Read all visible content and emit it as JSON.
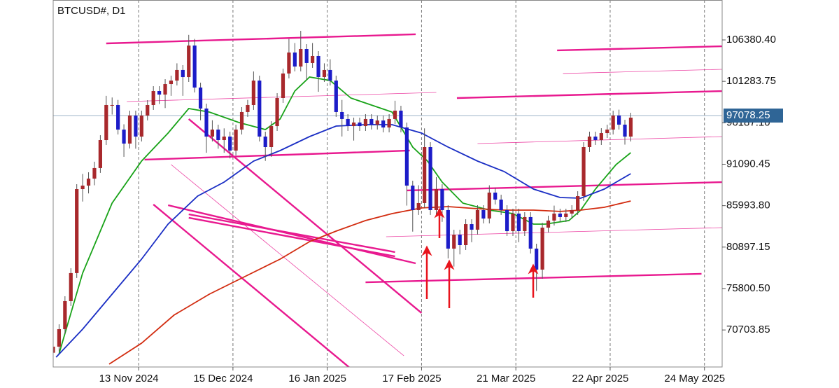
{
  "chart_data": {
    "type": "candlestick",
    "title": "BTCUSD#, D1",
    "up_color": "#a8282c",
    "down_color": "#1c1cc8",
    "wick_color": "#555555",
    "grid": true,
    "xlim": [
      "2024-10-15",
      "2025-05-30"
    ],
    "xticks": [
      {
        "value": "2024-11-13",
        "label": "13 Nov 2024"
      },
      {
        "value": "2024-12-15",
        "label": "15 Dec 2024"
      },
      {
        "value": "2025-01-16",
        "label": "16 Jan 2025"
      },
      {
        "value": "2025-02-17",
        "label": "17 Feb 2025"
      },
      {
        "value": "2025-03-21",
        "label": "21 Mar 2025"
      },
      {
        "value": "2025-04-22",
        "label": "22 Apr 2025"
      },
      {
        "value": "2025-05-24",
        "label": "24 May 2025"
      }
    ],
    "ylim": [
      66150,
      111290
    ],
    "yticks": [
      {
        "value": 106380.4,
        "label": "106380.40"
      },
      {
        "value": 101283.75,
        "label": "101283.75"
      },
      {
        "value": 96187.1,
        "label": "96187.10"
      },
      {
        "value": 91090.45,
        "label": "91090.45"
      },
      {
        "value": 85993.8,
        "label": "85993.80"
      },
      {
        "value": 80897.15,
        "label": "80897.15"
      },
      {
        "value": 75800.5,
        "label": "75800.50"
      },
      {
        "value": 70703.85,
        "label": "70703.85"
      }
    ],
    "last_price": 97078.25,
    "last_price_color": "#2f6596",
    "x": [
      "2024-10-15",
      "2024-10-17",
      "2024-10-19",
      "2024-10-21",
      "2024-10-23",
      "2024-10-25",
      "2024-10-27",
      "2024-10-29",
      "2024-10-31",
      "2024-11-02",
      "2024-11-04",
      "2024-11-06",
      "2024-11-08",
      "2024-11-10",
      "2024-11-12",
      "2024-11-14",
      "2024-11-16",
      "2024-11-18",
      "2024-11-20",
      "2024-11-22",
      "2024-11-24",
      "2024-11-26",
      "2024-11-28",
      "2024-11-30",
      "2024-12-02",
      "2024-12-04",
      "2024-12-06",
      "2024-12-08",
      "2024-12-10",
      "2024-12-12",
      "2024-12-14",
      "2024-12-16",
      "2024-12-18",
      "2024-12-20",
      "2024-12-22",
      "2024-12-24",
      "2024-12-26",
      "2024-12-28",
      "2024-12-30",
      "2025-01-01",
      "2025-01-03",
      "2025-01-05",
      "2025-01-07",
      "2025-01-09",
      "2025-01-11",
      "2025-01-13",
      "2025-01-15",
      "2025-01-17",
      "2025-01-19",
      "2025-01-21",
      "2025-01-23",
      "2025-01-25",
      "2025-01-27",
      "2025-01-29",
      "2025-01-31",
      "2025-02-02",
      "2025-02-04",
      "2025-02-06",
      "2025-02-08",
      "2025-02-10",
      "2025-02-12",
      "2025-02-14",
      "2025-02-16",
      "2025-02-18",
      "2025-02-20",
      "2025-02-22",
      "2025-02-24",
      "2025-02-26",
      "2025-02-28",
      "2025-03-02",
      "2025-03-04",
      "2025-03-06",
      "2025-03-08",
      "2025-03-10",
      "2025-03-12",
      "2025-03-14",
      "2025-03-16",
      "2025-03-18",
      "2025-03-20",
      "2025-03-22",
      "2025-03-24",
      "2025-03-26",
      "2025-03-28",
      "2025-03-30",
      "2025-04-01",
      "2025-04-03",
      "2025-04-05",
      "2025-04-07",
      "2025-04-09",
      "2025-04-11",
      "2025-04-13",
      "2025-04-15",
      "2025-04-17",
      "2025-04-19",
      "2025-04-21",
      "2025-04-23",
      "2025-04-25",
      "2025-04-27",
      "2025-04-29"
    ],
    "ohlc": [
      [
        67900,
        69250,
        67300,
        68650
      ],
      [
        68650,
        71400,
        68050,
        70800
      ],
      [
        70800,
        74850,
        70200,
        74250
      ],
      [
        74250,
        78300,
        73650,
        77700
      ],
      [
        77700,
        88630,
        77100,
        88030
      ],
      [
        88030,
        89900,
        86500,
        88460
      ],
      [
        88460,
        90100,
        87500,
        89320
      ],
      [
        89320,
        91400,
        88500,
        90620
      ],
      [
        90620,
        94660,
        90020,
        94060
      ],
      [
        94060,
        99500,
        93460,
        98370
      ],
      [
        98370,
        99300,
        97200,
        98370
      ],
      [
        98370,
        99000,
        94750,
        95350
      ],
      [
        95350,
        96000,
        92000,
        93630
      ],
      [
        93630,
        97680,
        93030,
        97080
      ],
      [
        97080,
        97680,
        93000,
        94490
      ],
      [
        94490,
        97680,
        93890,
        97080
      ],
      [
        97080,
        98970,
        96480,
        98370
      ],
      [
        98370,
        100690,
        97770,
        100090
      ],
      [
        100090,
        100690,
        98500,
        99660
      ],
      [
        99660,
        101550,
        98000,
        100950
      ],
      [
        100950,
        101980,
        99500,
        101380
      ],
      [
        101380,
        103500,
        100780,
        102680
      ],
      [
        102680,
        103280,
        99500,
        101810
      ],
      [
        101810,
        107000,
        101210,
        105690
      ],
      [
        105690,
        106500,
        99920,
        100520
      ],
      [
        100520,
        101120,
        96500,
        97940
      ],
      [
        97940,
        98540,
        92500,
        94490
      ],
      [
        94490,
        96500,
        93890,
        95350
      ],
      [
        95350,
        95950,
        93000,
        94060
      ],
      [
        94060,
        95500,
        92500,
        94490
      ],
      [
        94490,
        95090,
        91800,
        92770
      ],
      [
        92770,
        95950,
        92170,
        95350
      ],
      [
        95350,
        98110,
        94750,
        97510
      ],
      [
        97510,
        99000,
        96910,
        98370
      ],
      [
        98370,
        102500,
        97770,
        101380
      ],
      [
        101380,
        101980,
        93890,
        94490
      ],
      [
        94490,
        95090,
        91500,
        93200
      ],
      [
        93200,
        96380,
        92000,
        95780
      ],
      [
        95780,
        99830,
        95180,
        99230
      ],
      [
        99230,
        102850,
        98630,
        102250
      ],
      [
        102250,
        106500,
        101650,
        104830
      ],
      [
        104830,
        106000,
        102510,
        103110
      ],
      [
        103110,
        107500,
        102510,
        105260
      ],
      [
        105260,
        105860,
        101500,
        103540
      ],
      [
        103540,
        106000,
        102940,
        104400
      ],
      [
        104400,
        105000,
        100000,
        101810
      ],
      [
        101810,
        103500,
        101210,
        102680
      ],
      [
        102680,
        104000,
        100780,
        101380
      ],
      [
        101380,
        101980,
        96910,
        97510
      ],
      [
        97510,
        99000,
        94500,
        96650
      ],
      [
        96650,
        97250,
        95180,
        95780
      ],
      [
        95780,
        96820,
        94000,
        96220
      ],
      [
        96220,
        96820,
        95180,
        95780
      ],
      [
        95780,
        97250,
        95180,
        96650
      ],
      [
        96650,
        97250,
        95360,
        95960
      ],
      [
        95960,
        97070,
        95360,
        96470
      ],
      [
        96470,
        97070,
        95010,
        95610
      ],
      [
        95610,
        97250,
        95010,
        96650
      ],
      [
        96650,
        98900,
        96050,
        97680
      ],
      [
        97680,
        98280,
        95010,
        95610
      ],
      [
        95610,
        96210,
        86000,
        88460
      ],
      [
        88460,
        89060,
        82800,
        85450
      ],
      [
        85450,
        88500,
        84850,
        86310
      ],
      [
        86310,
        95500,
        85710,
        93200
      ],
      [
        93200,
        93800,
        84850,
        85450
      ],
      [
        85450,
        89500,
        84850,
        88030
      ],
      [
        88030,
        88630,
        84000,
        85450
      ],
      [
        85450,
        86050,
        79500,
        80710
      ],
      [
        80710,
        83030,
        78500,
        82430
      ],
      [
        82430,
        83030,
        80000,
        81140
      ],
      [
        81140,
        84320,
        80540,
        83720
      ],
      [
        83720,
        84320,
        81500,
        83040
      ],
      [
        83040,
        86050,
        82440,
        85450
      ],
      [
        85450,
        86050,
        83810,
        84410
      ],
      [
        84410,
        88500,
        83810,
        87600
      ],
      [
        87600,
        88200,
        86140,
        86740
      ],
      [
        86740,
        87340,
        84850,
        85450
      ],
      [
        85450,
        86050,
        82260,
        82860
      ],
      [
        82860,
        85620,
        82260,
        85020
      ],
      [
        85020,
        85620,
        81500,
        82860
      ],
      [
        82860,
        85190,
        82260,
        84590
      ],
      [
        84590,
        85190,
        80110,
        80710
      ],
      [
        80710,
        81310,
        75500,
        78130
      ],
      [
        78130,
        83890,
        77000,
        83290
      ],
      [
        83290,
        84760,
        82690,
        84160
      ],
      [
        84160,
        86000,
        83560,
        85020
      ],
      [
        85020,
        85620,
        83990,
        84590
      ],
      [
        84590,
        85620,
        83990,
        85020
      ],
      [
        85020,
        86050,
        84420,
        85450
      ],
      [
        85450,
        87770,
        84850,
        87170
      ],
      [
        87170,
        93800,
        86570,
        93200
      ],
      [
        93200,
        95090,
        92600,
        94490
      ],
      [
        94490,
        95090,
        93460,
        94060
      ],
      [
        94060,
        95520,
        93460,
        94920
      ],
      [
        94920,
        95950,
        94320,
        95350
      ],
      [
        95350,
        97680,
        94750,
        97080
      ],
      [
        97080,
        97800,
        95360,
        95960
      ],
      [
        95960,
        96560,
        93500,
        94490
      ],
      [
        94490,
        97420,
        93890,
        96820
      ]
    ],
    "moving_averages": [
      {
        "color": "#19a319",
        "x": [
          "2024-10-17",
          "2024-10-25",
          "2024-11-04",
          "2024-11-14",
          "2024-11-23",
          "2024-11-30",
          "2024-12-07",
          "2024-12-17",
          "2024-12-26",
          "2024-12-31",
          "2025-01-05",
          "2025-01-10",
          "2025-01-17",
          "2025-01-24",
          "2025-01-31",
          "2025-02-07",
          "2025-02-14",
          "2025-02-19",
          "2025-02-24",
          "2025-03-03",
          "2025-03-12",
          "2025-03-20",
          "2025-03-27",
          "2025-03-31",
          "2025-04-08",
          "2025-04-12",
          "2025-04-17",
          "2025-04-24",
          "2025-04-29"
        ],
        "values": [
          67790,
          77700,
          86310,
          91480,
          94920,
          97940,
          97510,
          96220,
          95350,
          96650,
          100090,
          101810,
          101380,
          99230,
          98370,
          97510,
          93200,
          91480,
          88890,
          86310,
          85450,
          85020,
          83720,
          83720,
          84160,
          85450,
          88030,
          91050,
          92510
        ]
      },
      {
        "color": "#1a2ec4",
        "x": [
          "2024-10-16",
          "2024-10-25",
          "2024-11-04",
          "2024-11-14",
          "2024-11-23",
          "2024-12-03",
          "2024-12-12",
          "2024-12-22",
          "2024-12-31",
          "2025-01-10",
          "2025-01-19",
          "2025-01-29",
          "2025-02-07",
          "2025-02-17",
          "2025-02-26",
          "2025-03-08",
          "2025-03-17",
          "2025-03-27",
          "2025-04-05",
          "2025-04-12",
          "2025-04-20",
          "2025-04-29"
        ],
        "values": [
          67360,
          70800,
          75110,
          79420,
          83720,
          87170,
          88890,
          91480,
          92770,
          94490,
          95780,
          95960,
          95960,
          94920,
          93200,
          91480,
          90190,
          88030,
          87000,
          86910,
          88030,
          89930
        ]
      },
      {
        "color": "#d22c10",
        "x": [
          "2024-11-03",
          "2024-11-14",
          "2024-11-25",
          "2024-12-07",
          "2024-12-19",
          "2024-12-31",
          "2025-01-10",
          "2025-01-19",
          "2025-01-29",
          "2025-02-07",
          "2025-02-17",
          "2025-02-26",
          "2025-03-08",
          "2025-03-17",
          "2025-03-27",
          "2025-04-05",
          "2025-04-12",
          "2025-04-20",
          "2025-04-29"
        ],
        "values": [
          66500,
          69080,
          72530,
          75110,
          77260,
          79420,
          81570,
          82860,
          84160,
          85020,
          85710,
          85880,
          85620,
          85450,
          85450,
          85280,
          85450,
          85790,
          86570
        ]
      }
    ],
    "trendlines": [
      {
        "color": "#e8198f",
        "style": "thick",
        "x": [
          "2024-11-02",
          "2025-02-15"
        ],
        "values": [
          105950,
          107070
        ]
      },
      {
        "color": "#e8198f",
        "style": "thick",
        "x": [
          "2025-04-04",
          "2025-05-30"
        ],
        "values": [
          105090,
          105600
        ]
      },
      {
        "color": "#e8198f",
        "style": "thin",
        "x": [
          "2025-04-06",
          "2025-05-30"
        ],
        "values": [
          102250,
          102760
        ]
      },
      {
        "color": "#e8198f",
        "style": "thick",
        "x": [
          "2025-03-01",
          "2025-05-30"
        ],
        "values": [
          99230,
          100090
        ]
      },
      {
        "color": "#e8198f",
        "style": "thin",
        "x": [
          "2024-11-09",
          "2025-02-22"
        ],
        "values": [
          98800,
          99920
        ]
      },
      {
        "color": "#e8198f",
        "style": "thick",
        "x": [
          "2024-11-15",
          "2025-02-13"
        ],
        "values": [
          91650,
          92770
        ]
      },
      {
        "color": "#e8198f",
        "style": "thin",
        "x": [
          "2025-03-08",
          "2025-05-30"
        ],
        "values": [
          93630,
          94490
        ]
      },
      {
        "color": "#e8198f",
        "style": "thick",
        "x": [
          "2025-02-12",
          "2025-05-30"
        ],
        "values": [
          87860,
          88890
        ]
      },
      {
        "color": "#e8198f",
        "style": "thin",
        "x": [
          "2025-02-05",
          "2025-05-30"
        ],
        "values": [
          82170,
          83290
        ]
      },
      {
        "color": "#e8198f",
        "style": "thick",
        "x": [
          "2025-01-29",
          "2025-05-23"
        ],
        "values": [
          76570,
          77610
        ]
      },
      {
        "color": "#e8198f",
        "style": "thick",
        "x": [
          "2024-11-30",
          "2025-02-17"
        ],
        "values": [
          96650,
          72790
        ]
      },
      {
        "color": "#e8198f",
        "style": "thick",
        "x": [
          "2024-11-18",
          "2025-01-25"
        ],
        "values": [
          86140,
          65640
        ]
      },
      {
        "color": "#e8198f",
        "style": "thin",
        "x": [
          "2024-11-24",
          "2025-02-11"
        ],
        "values": [
          91050,
          67530
        ]
      },
      {
        "color": "#e8198f",
        "style": "thick",
        "x": [
          "2024-11-23",
          "2025-02-15"
        ],
        "values": [
          86050,
          78900
        ]
      },
      {
        "color": "#e8198f",
        "style": "thick",
        "x": [
          "2024-11-30",
          "2025-02-08"
        ],
        "values": [
          84930,
          80280
        ]
      },
      {
        "color": "#e8198f",
        "style": "thick",
        "x": [
          "2024-11-30",
          "2025-02-08"
        ],
        "values": [
          84500,
          79760
        ]
      }
    ]
  }
}
